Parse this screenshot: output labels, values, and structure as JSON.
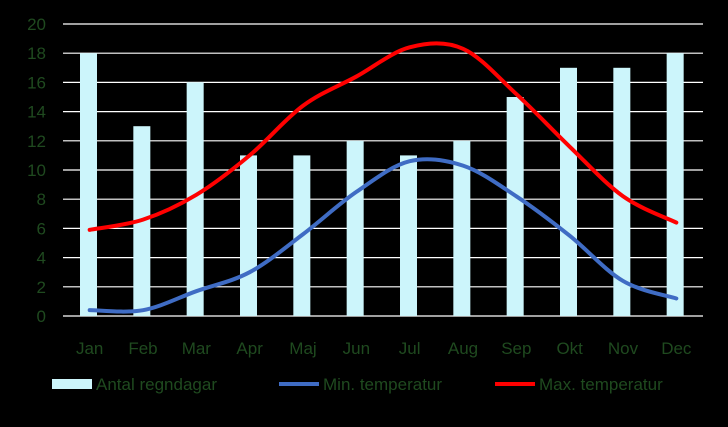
{
  "chart_data": {
    "type": "bar+line",
    "categories": [
      "Jan",
      "Feb",
      "Mar",
      "Apr",
      "Maj",
      "Jun",
      "Jul",
      "Aug",
      "Sep",
      "Okt",
      "Nov",
      "Dec"
    ],
    "ylim": [
      0,
      20
    ],
    "yticks": [
      0,
      2,
      4,
      6,
      8,
      10,
      12,
      14,
      16,
      18,
      20
    ],
    "grid": true,
    "legend_position": "bottom",
    "series": [
      {
        "name": "Antal regndagar",
        "type": "bar",
        "color": "#ccf5fb",
        "values": [
          18,
          13,
          16,
          11,
          11,
          12,
          11,
          12,
          15,
          17,
          17,
          18
        ]
      },
      {
        "name": "Min. temperatur",
        "type": "line",
        "color": "#3f6cc4",
        "values": [
          0.4,
          0.4,
          1.7,
          3.0,
          5.6,
          8.5,
          10.6,
          10.3,
          8.2,
          5.5,
          2.4,
          1.2
        ]
      },
      {
        "name": "Max. temperatur",
        "type": "line",
        "color": "#ff0000",
        "values": [
          5.9,
          6.6,
          8.3,
          11.0,
          14.4,
          16.4,
          18.4,
          18.3,
          15.2,
          11.6,
          8.2,
          6.4
        ]
      }
    ]
  }
}
